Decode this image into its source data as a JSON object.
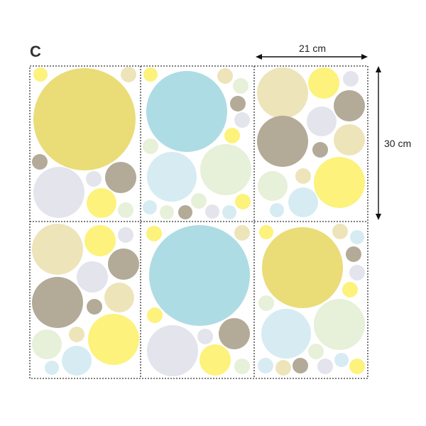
{
  "set_label": "C",
  "dimensions": {
    "width_label": "21 cm",
    "height_label": "30 cm"
  },
  "palette": {
    "mustard": "#EADC77",
    "yellow": "#FDF27B",
    "sky": "#AEDCE4",
    "ice": "#D6ECF2",
    "sage": "#E7F0D8",
    "cream": "#EEE4BA",
    "taupe": "#B3AA98",
    "lilac": "#E3E4EC"
  }
}
